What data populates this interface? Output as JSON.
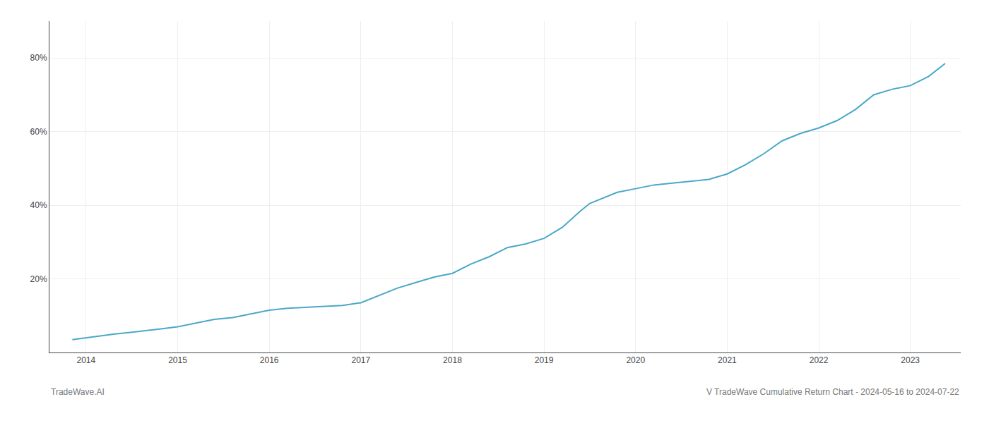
{
  "chart_data": {
    "type": "line",
    "annotations": [
      "TradeWave.AI",
      "V TradeWave Cumulative Return Chart - 2024-05-16 to 2024-07-22"
    ],
    "color": "#4aa8c8",
    "x": [
      2013.85,
      2014.0,
      2014.15,
      2014.3,
      2014.5,
      2014.7,
      2014.85,
      2015.0,
      2015.2,
      2015.4,
      2015.6,
      2015.8,
      2016.0,
      2016.2,
      2016.4,
      2016.6,
      2016.8,
      2017.0,
      2017.2,
      2017.4,
      2017.6,
      2017.8,
      2018.0,
      2018.2,
      2018.4,
      2018.6,
      2018.8,
      2019.0,
      2019.2,
      2019.4,
      2019.5,
      2019.6,
      2019.8,
      2020.0,
      2020.2,
      2020.4,
      2020.6,
      2020.8,
      2021.0,
      2021.2,
      2021.4,
      2021.6,
      2021.8,
      2022.0,
      2022.2,
      2022.4,
      2022.6,
      2022.8,
      2023.0,
      2023.2,
      2023.38
    ],
    "values": [
      3.5,
      4.0,
      4.5,
      5.0,
      5.5,
      6.0,
      6.5,
      7.0,
      8.0,
      9.0,
      9.5,
      10.5,
      11.5,
      12.0,
      12.3,
      12.6,
      12.8,
      13.5,
      15.5,
      17.5,
      19.0,
      20.5,
      21.5,
      24.0,
      26.0,
      28.5,
      29.5,
      31.0,
      34.0,
      38.5,
      40.5,
      41.5,
      43.5,
      44.5,
      45.5,
      46.0,
      46.5,
      47.0,
      48.5,
      51.0,
      54.0,
      57.5,
      59.5,
      61.0,
      63.0,
      66.0,
      70.0,
      71.5,
      72.5,
      75.0,
      78.5
    ],
    "xlim": [
      2013.6,
      2023.55
    ],
    "xticks": [
      2014,
      2015,
      2016,
      2017,
      2018,
      2019,
      2020,
      2021,
      2022,
      2023
    ],
    "ylim": [
      0,
      90
    ],
    "yticks": [
      {
        "value": 20,
        "label": "20%"
      },
      {
        "value": 40,
        "label": "40%"
      },
      {
        "value": 60,
        "label": "60%"
      },
      {
        "value": 80,
        "label": "80%"
      }
    ],
    "grid": true
  }
}
